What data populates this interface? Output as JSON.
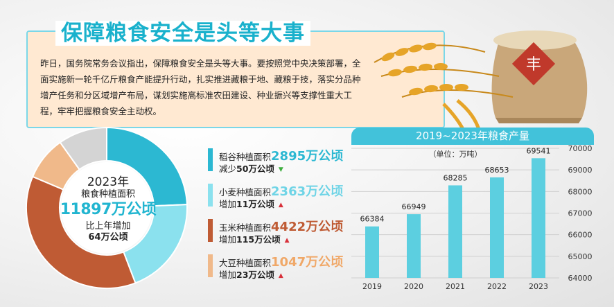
{
  "headline": {
    "title": "保障粮食安全是头等大事",
    "body": "昨日，国务院常务会议指出，保障粮食安全是头等大事。要按照党中央决策部署，全面实施新一轮千亿斤粮食产能提升行动，扎实推进藏粮于地、藏粮于技，落实分品种增产任务和分区域增产布局，谋划实施高标准农田建设、种业振兴等支撑性重大工程，牢牢把握粮食安全主动权。"
  },
  "logo_text": "丰",
  "donut": {
    "year": "2023年",
    "label": "粮食种植面积",
    "total": "11897万公顷",
    "change_label": "比上年增加",
    "change_value": "64万公顷"
  },
  "crops": [
    {
      "name": "稻谷种植面积",
      "value": "2895万公顷",
      "change_label": "减少",
      "change_value": "50万公顷",
      "trend": "down",
      "color": "#2cb8d2",
      "area": 2895
    },
    {
      "name": "小麦种植面积",
      "value": "2363万公顷",
      "change_label": "增加",
      "change_value": "11万公顷",
      "trend": "up",
      "color": "#8be1ee",
      "area": 2363
    },
    {
      "name": "玉米种植面积",
      "value": "4422万公顷",
      "change_label": "增加",
      "change_value": "115万公顷",
      "trend": "up",
      "color": "#bf5b34",
      "area": 4422
    },
    {
      "name": "大豆种植面积",
      "value": "1047万公顷",
      "change_label": "增加",
      "change_value": "23万公顷",
      "trend": "up",
      "color": "#f0b98a",
      "area": 1047
    }
  ],
  "other_area": {
    "area": 1170,
    "color": "#d4d4d4"
  },
  "colors": {
    "accent": "#19b1cc",
    "down": "#3fae3f",
    "up": "#d8303a",
    "bar": "#5ccfe0"
  },
  "chart_data": {
    "type": "bar",
    "title": "2019~2023年粮食产量",
    "unit_label": "（单位：万吨）",
    "categories": [
      "2019",
      "2020",
      "2021",
      "2022",
      "2023"
    ],
    "values": [
      66384,
      66949,
      68285,
      68653,
      69541
    ],
    "ylim": [
      64000,
      70000
    ],
    "yticks": [
      64000,
      65000,
      66000,
      67000,
      68000,
      69000,
      70000
    ],
    "y_axis_position": "right",
    "grid": true
  }
}
